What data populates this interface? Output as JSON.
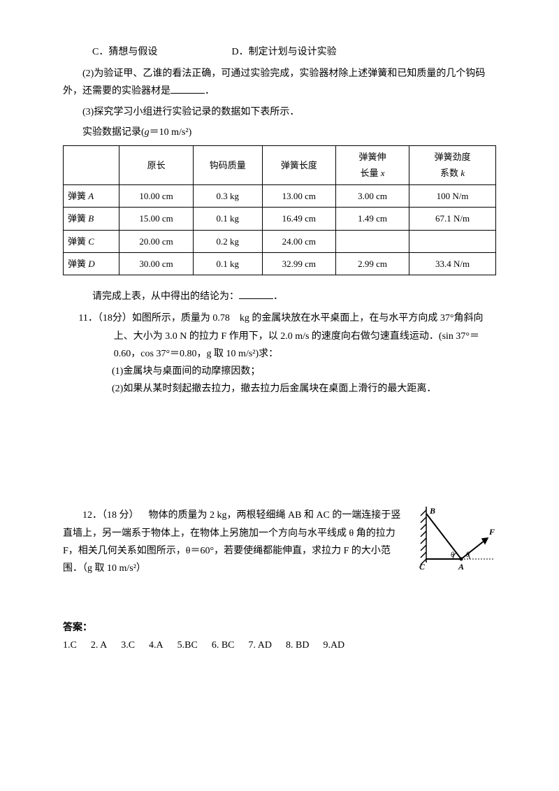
{
  "options": {
    "C": "C．猜想与假设",
    "D": "D．制定计划与设计实验"
  },
  "para2": "(2)为验证甲、乙谁的看法正确，可通过实验完成，实验器材除上述弹簧和已知质量的几个钩码外，还需要的实验器材是",
  "para2_end": "．",
  "para3": "(3)探究学习小组进行实验记录的数据如下表所示．",
  "para4_prefix": "实验数据记录(",
  "para4_g": "g",
  "para4_eq": "＝10 m/s²",
  "para4_suffix": ")",
  "table": {
    "headers": [
      "",
      "原长",
      "钩码质量",
      "弹簧长度",
      "弹簧伸\n长量 x",
      "弹簧劲度\n系数 k"
    ],
    "rows": [
      [
        "弹簧 A",
        "10.00 cm",
        "0.3 kg",
        "13.00 cm",
        "3.00 cm",
        "100 N/m"
      ],
      [
        "弹簧 B",
        "15.00 cm",
        "0.1 kg",
        "16.49 cm",
        "1.49 cm",
        "67.1 N/m"
      ],
      [
        "弹簧 C",
        "20.00 cm",
        "0.2 kg",
        "24.00 cm",
        "",
        ""
      ],
      [
        "弹簧 D",
        "30.00 cm",
        "0.1 kg",
        "32.99 cm",
        "2.99 cm",
        "33.4 N/m"
      ]
    ],
    "col_widths": [
      "13%",
      "17%",
      "16%",
      "17%",
      "17%",
      "20%"
    ]
  },
  "conclusion": "请完成上表，从中得出的结论为：",
  "conclusion_end": "．",
  "q11": {
    "title": "11．（18分）如图所示，质量为 0.78 kg 的金属块放在水平桌面上，在与水平方向成 37°角斜向上、大小为 3.0 N 的拉力 F 作用下，以 2.0 m/s 的速度向右做匀速直线运动．(sin 37°＝0.60，cos 37°＝0.80，g 取 10 m/s²)求：",
    "sub1": "(1)金属块与桌面间的动摩擦因数；",
    "sub2": "(2)如果从某时刻起撤去拉力，撤去拉力后金属块在桌面上滑行的最大距离．"
  },
  "q12": {
    "title": "12．（18 分） 物体的质量为 2 kg，两根轻细绳 AB 和 AC 的一端连接于竖直墙上，另一端系于物体上，在物体上另施加一个方向与水平线成 θ 角的拉力 F，相关几何关系如图所示，θ＝60°，若要使绳都能伸直，求拉力 F 的大小范围．（g 取 10   m/s²）"
  },
  "answers": {
    "title": "答案：",
    "items": [
      "1.C",
      "2. A",
      "3.C",
      "4.A",
      "5.BC",
      "6. BC",
      "7. AD",
      "8. BD",
      "9.AD"
    ]
  },
  "fig": {
    "B": "B",
    "C": "C",
    "A": "A",
    "F": "F",
    "theta": "θ"
  }
}
